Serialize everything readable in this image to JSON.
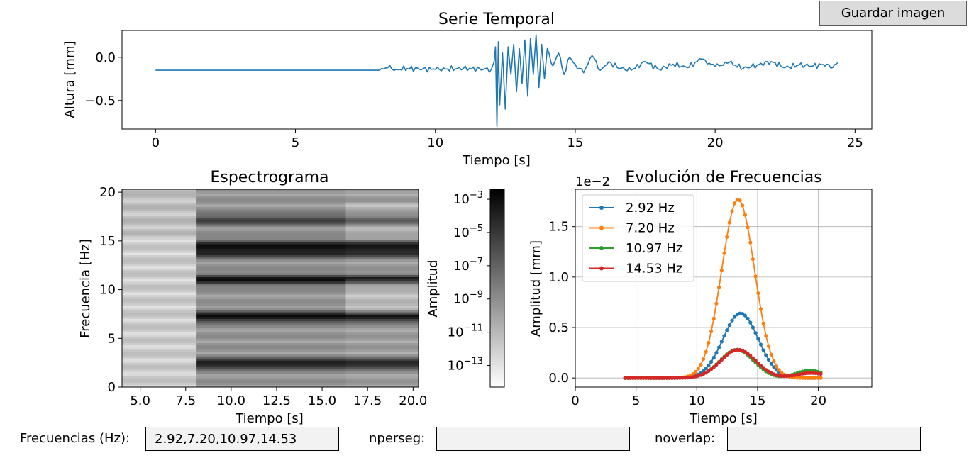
{
  "toolbar": {
    "save_label": "Guardar imagen"
  },
  "controls": {
    "freq_label": "Frecuencias (Hz):",
    "freq_value": "2.92,7.20,10.97,14.53",
    "nperseg_label": "nperseg:",
    "nperseg_value": "",
    "noverlap_label": "noverlap:",
    "noverlap_value": ""
  },
  "chart_data": [
    {
      "type": "line",
      "title": "Serie Temporal",
      "xlabel": "Tiempo [s]",
      "ylabel": "Altura [mm]",
      "xlim": [
        -1.2,
        25.6
      ],
      "ylim": [
        -0.83,
        0.31
      ],
      "xticks": [
        0,
        5,
        10,
        15,
        20,
        25
      ],
      "yticks": [
        0.0,
        -0.5
      ],
      "ytick_labels": [
        "0.0",
        "−0.5"
      ],
      "color": "#1f77b4",
      "series": [
        {
          "x": [
            0,
            8.0,
            8.3,
            8.6,
            9.0,
            10.0,
            11.0,
            12.0,
            12.1,
            12.15,
            12.2,
            12.25,
            12.3,
            12.4,
            12.5,
            12.6,
            12.7,
            12.8,
            12.9,
            13.0,
            13.1,
            13.2,
            13.3,
            13.4,
            13.5,
            13.6,
            13.7,
            13.8,
            13.9,
            14.0,
            14.2,
            14.4,
            14.6,
            14.8,
            15.0,
            15.3,
            15.6,
            15.9,
            16.2,
            16.5,
            17.0,
            17.5,
            18.0,
            18.5,
            19.0,
            19.5,
            20.0,
            20.5,
            21.0,
            21.5,
            22.0,
            22.5,
            23.0,
            23.5,
            24.0,
            24.2,
            24.4
          ],
          "y": [
            -0.15,
            -0.15,
            -0.12,
            -0.14,
            -0.13,
            -0.14,
            -0.13,
            -0.14,
            -0.05,
            0.12,
            -0.8,
            0.18,
            -0.55,
            0.05,
            -0.6,
            0.12,
            -0.2,
            0.15,
            -0.4,
            0.1,
            -0.3,
            0.2,
            -0.45,
            0.22,
            -0.2,
            0.26,
            -0.35,
            0.15,
            -0.25,
            0.1,
            -0.1,
            0.05,
            -0.2,
            0.0,
            -0.08,
            -0.18,
            0.02,
            -0.15,
            -0.05,
            -0.12,
            -0.15,
            -0.05,
            -0.14,
            -0.08,
            -0.12,
            -0.02,
            -0.11,
            -0.06,
            -0.13,
            -0.09,
            -0.05,
            -0.12,
            -0.09,
            -0.1,
            -0.08,
            -0.12,
            -0.06
          ]
        }
      ]
    },
    {
      "type": "heatmap",
      "title": "Espectrograma",
      "xlabel": "Tiempo [s]",
      "ylabel": "Frecuencia [Hz]",
      "xlim": [
        4.0,
        20.3
      ],
      "ylim": [
        0,
        20.3
      ],
      "xticks": [
        5.0,
        7.5,
        10.0,
        12.5,
        15.0,
        17.5,
        20.0
      ],
      "xtick_labels": [
        "5.0",
        "7.5",
        "10.0",
        "12.5",
        "15.0",
        "17.5",
        "20.0"
      ],
      "yticks": [
        0,
        5,
        10,
        15,
        20
      ],
      "colormap": "gray_r",
      "colorbar": {
        "label": "Amplitud",
        "ticks": [
          {
            "mantissa": "10",
            "exp": "−3"
          },
          {
            "mantissa": "10",
            "exp": "−5"
          },
          {
            "mantissa": "10",
            "exp": "−7"
          },
          {
            "mantissa": "10",
            "exp": "−9"
          },
          {
            "mantissa": "10",
            "exp": "−11"
          },
          {
            "mantissa": "10",
            "exp": "−13"
          }
        ],
        "exp_range": [
          -14.3,
          -2.4
        ],
        "tick_exps": [
          -3,
          -5,
          -7,
          -9,
          -11,
          -13
        ]
      },
      "bands": [
        {
          "freq": 2.4,
          "t_start": 8.1,
          "t_end": 20.3,
          "strength": 0.95
        },
        {
          "freq": 7.2,
          "t_start": 8.1,
          "t_end": 20.3,
          "strength": 1.0
        },
        {
          "freq": 11.0,
          "t_start": 8.1,
          "t_end": 20.3,
          "strength": 0.9
        },
        {
          "freq": 13.8,
          "t_start": 8.1,
          "t_end": 20.3,
          "strength": 0.8
        },
        {
          "freq": 14.6,
          "t_start": 8.1,
          "t_end": 20.3,
          "strength": 0.75
        },
        {
          "freq": 17.2,
          "t_start": 8.1,
          "t_end": 20.3,
          "strength": 0.6
        }
      ]
    },
    {
      "type": "line",
      "title": "Evolución de Frecuencias",
      "xlabel": "Tiempo [s]",
      "ylabel": "Amplitud [mm]",
      "offset_text": "1e−2",
      "xlim": [
        0,
        24.4
      ],
      "ylim": [
        -0.09,
        1.87
      ],
      "xticks": [
        0,
        5,
        10,
        15,
        20
      ],
      "yticks": [
        0.0,
        0.5,
        1.0,
        1.5
      ],
      "ytick_labels": [
        "0.0",
        "0.5",
        "1.0",
        "1.5"
      ],
      "grid": true,
      "legend": "top-left",
      "series": [
        {
          "name": "2.92 Hz",
          "color": "#1f77b4",
          "peak": 0.64,
          "center": 13.6,
          "width": 1.45,
          "tail_center": 19.0,
          "tail_peak": 0.0,
          "tail_width": 1.0
        },
        {
          "name": "7.20 Hz",
          "color": "#ff7f0e",
          "peak": 1.77,
          "center": 13.4,
          "width": 1.35,
          "tail_center": 19.0,
          "tail_peak": 0.0,
          "tail_width": 1.0
        },
        {
          "name": "10.97 Hz",
          "color": "#2ca02c",
          "peak": 0.28,
          "center": 13.3,
          "width": 1.4,
          "tail_center": 19.3,
          "tail_peak": 0.075,
          "tail_width": 1.1
        },
        {
          "name": "14.53 Hz",
          "color": "#d62728",
          "peak": 0.28,
          "center": 13.4,
          "width": 1.45,
          "tail_center": 19.4,
          "tail_peak": 0.05,
          "tail_width": 1.2
        }
      ],
      "t_start": 4.1,
      "t_end": 20.2,
      "n_points": 76
    }
  ]
}
